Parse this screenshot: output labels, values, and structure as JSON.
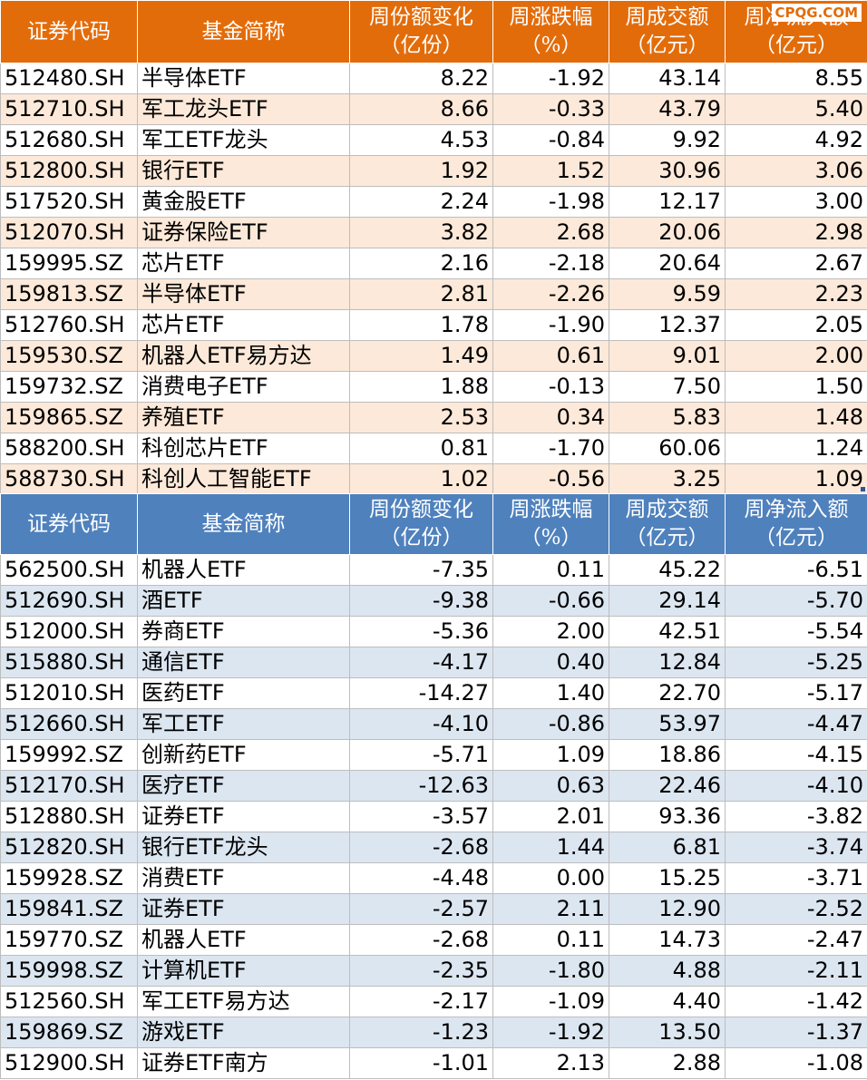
{
  "headers": {
    "code": "证券代码",
    "name": "基金简称",
    "share_change": [
      "周份额变化",
      "（亿份）"
    ],
    "pct_change": [
      "周涨跌幅",
      "（%）"
    ],
    "turnover": [
      "周成交额",
      "（亿元）"
    ],
    "net_inflow": [
      "周净流入额",
      "（亿元）"
    ]
  },
  "watermark": "CPQG.COM",
  "colors": {
    "inflow_header": "#e36c0a",
    "inflow_band": "#fde9d9",
    "outflow_header": "#4f81bd",
    "outflow_band": "#dce6f1"
  },
  "inflow_rows": [
    [
      "512480.SH",
      "半导体ETF",
      "8.22",
      "-1.92",
      "43.14",
      "8.55"
    ],
    [
      "512710.SH",
      "军工龙头ETF",
      "8.66",
      "-0.33",
      "43.79",
      "5.40"
    ],
    [
      "512680.SH",
      "军工ETF龙头",
      "4.53",
      "-0.84",
      "9.92",
      "4.92"
    ],
    [
      "512800.SH",
      "银行ETF",
      "1.92",
      "1.52",
      "30.96",
      "3.06"
    ],
    [
      "517520.SH",
      "黄金股ETF",
      "2.24",
      "-1.98",
      "12.17",
      "3.00"
    ],
    [
      "512070.SH",
      "证券保险ETF",
      "3.82",
      "2.68",
      "20.06",
      "2.98"
    ],
    [
      "159995.SZ",
      "芯片ETF",
      "2.16",
      "-2.18",
      "20.64",
      "2.67"
    ],
    [
      "159813.SZ",
      "半导体ETF",
      "2.81",
      "-2.26",
      "9.59",
      "2.23"
    ],
    [
      "512760.SH",
      "芯片ETF",
      "1.78",
      "-1.90",
      "12.37",
      "2.05"
    ],
    [
      "159530.SZ",
      "机器人ETF易方达",
      "1.49",
      "0.61",
      "9.01",
      "2.00"
    ],
    [
      "159732.SZ",
      "消费电子ETF",
      "1.88",
      "-0.13",
      "7.50",
      "1.50"
    ],
    [
      "159865.SZ",
      "养殖ETF",
      "2.53",
      "0.34",
      "5.83",
      "1.48"
    ],
    [
      "588200.SH",
      "科创芯片ETF",
      "0.81",
      "-1.70",
      "60.06",
      "1.24"
    ],
    [
      "588730.SH",
      "科创人工智能ETF",
      "1.02",
      "-0.56",
      "3.25",
      "1.09"
    ]
  ],
  "outflow_rows": [
    [
      "562500.SH",
      "机器人ETF",
      "-7.35",
      "0.11",
      "45.22",
      "-6.51"
    ],
    [
      "512690.SH",
      "酒ETF",
      "-9.38",
      "-0.66",
      "29.14",
      "-5.70"
    ],
    [
      "512000.SH",
      "券商ETF",
      "-5.36",
      "2.00",
      "42.51",
      "-5.54"
    ],
    [
      "515880.SH",
      "通信ETF",
      "-4.17",
      "0.40",
      "12.84",
      "-5.25"
    ],
    [
      "512010.SH",
      "医药ETF",
      "-14.27",
      "1.40",
      "22.70",
      "-5.17"
    ],
    [
      "512660.SH",
      "军工ETF",
      "-4.10",
      "-0.86",
      "53.97",
      "-4.47"
    ],
    [
      "159992.SZ",
      "创新药ETF",
      "-5.71",
      "1.09",
      "18.86",
      "-4.15"
    ],
    [
      "512170.SH",
      "医疗ETF",
      "-12.63",
      "0.63",
      "22.46",
      "-4.10"
    ],
    [
      "512880.SH",
      "证券ETF",
      "-3.57",
      "2.01",
      "93.36",
      "-3.82"
    ],
    [
      "512820.SH",
      "银行ETF龙头",
      "-2.68",
      "1.44",
      "6.81",
      "-3.74"
    ],
    [
      "159928.SZ",
      "消费ETF",
      "-4.48",
      "0.00",
      "15.25",
      "-3.71"
    ],
    [
      "159841.SZ",
      "证券ETF",
      "-2.57",
      "2.11",
      "12.90",
      "-2.52"
    ],
    [
      "159770.SZ",
      "机器人ETF",
      "-2.68",
      "0.11",
      "14.73",
      "-2.47"
    ],
    [
      "159998.SZ",
      "计算机ETF",
      "-2.35",
      "-1.80",
      "4.88",
      "-2.11"
    ],
    [
      "512560.SH",
      "军工ETF易方达",
      "-2.17",
      "-1.09",
      "4.40",
      "-1.42"
    ],
    [
      "159869.SZ",
      "游戏ETF",
      "-1.23",
      "-1.92",
      "13.50",
      "-1.37"
    ],
    [
      "512900.SH",
      "证券ETF南方",
      "-1.01",
      "2.13",
      "2.88",
      "-1.08"
    ]
  ]
}
